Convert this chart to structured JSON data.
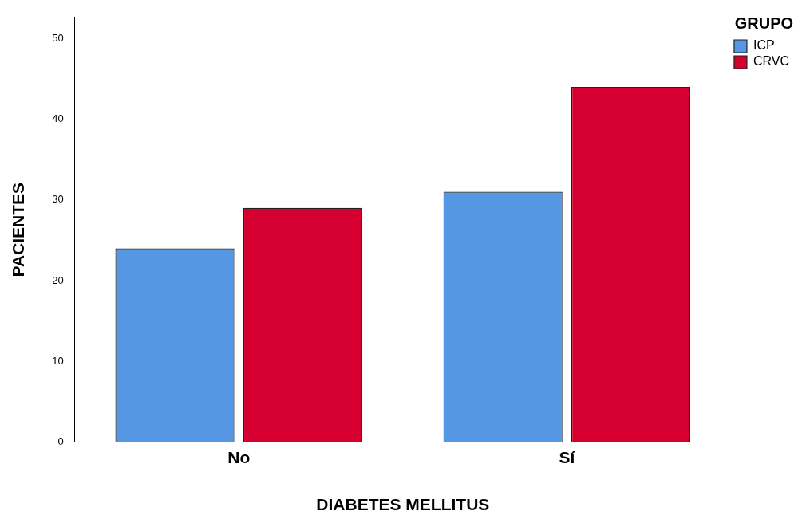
{
  "chart_data": {
    "type": "bar",
    "xlabel": "DIABETES MELLITUS",
    "ylabel": "PACIENTES",
    "legend_title": "GRUPO",
    "categories": [
      "No",
      "Sí"
    ],
    "series": [
      {
        "name": "ICP",
        "color": "#5597e2",
        "values": [
          24,
          31
        ]
      },
      {
        "name": "CRVC",
        "color": "#d5002f",
        "values": [
          29,
          44
        ]
      }
    ],
    "ylim": [
      0,
      52.6
    ],
    "yticks": [
      0,
      10,
      20,
      30,
      40,
      50
    ],
    "grid": false,
    "legend": "top right"
  }
}
